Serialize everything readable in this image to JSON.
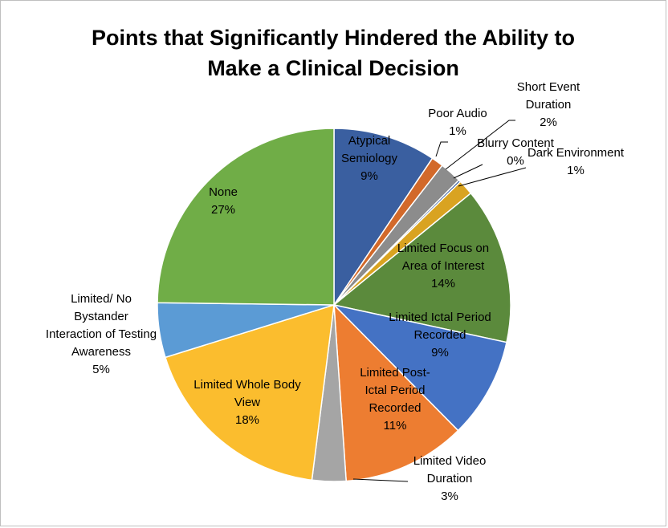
{
  "chart_data": {
    "type": "pie",
    "title": [
      "Points that Significantly Hindered the Ability to",
      "Make a Clinical Decision"
    ],
    "slices": [
      {
        "name": "Atypical Semiology",
        "value": 9,
        "label_lines": [
          "Atypical",
          "Semiology",
          "9%"
        ],
        "color": "#3a5fa0"
      },
      {
        "name": "Poor Audio",
        "value": 1,
        "label_lines": [
          "Poor Audio",
          "1%"
        ],
        "color": "#d2692a"
      },
      {
        "name": "Short Event Duration",
        "value": 2,
        "label_lines": [
          "Short Event",
          "Duration",
          "2%"
        ],
        "color": "#8c8c8c"
      },
      {
        "name": "Blurry Content",
        "value": 0,
        "label_lines": [
          "Blurry Content",
          "0%"
        ],
        "color": "#2e5597"
      },
      {
        "name": "Dark Environment",
        "value": 1,
        "label_lines": [
          "Dark Environment",
          "1%"
        ],
        "color": "#d9a321"
      },
      {
        "name": "Limited Focus on Area of Interest",
        "value": 14,
        "label_lines": [
          "Limited Focus on",
          "Area of Interest",
          "14%"
        ],
        "color": "#5b8a3c"
      },
      {
        "name": "Limited Ictal Period Recorded",
        "value": 9,
        "label_lines": [
          "Limited Ictal Period",
          "Recorded",
          "9%"
        ],
        "color": "#4472c4"
      },
      {
        "name": "Limited Post-Ictal Period Recorded",
        "value": 11,
        "label_lines": [
          "Limited Post-",
          "Ictal Period",
          "Recorded",
          "11%"
        ],
        "color": "#ed7d31"
      },
      {
        "name": "Limited Video Duration",
        "value": 3,
        "label_lines": [
          "Limited Video",
          "Duration",
          "3%"
        ],
        "color": "#a5a5a5"
      },
      {
        "name": "Limited Whole Body View",
        "value": 18,
        "label_lines": [
          "Limited Whole Body",
          "View",
          "18%"
        ],
        "color": "#fbbd2e"
      },
      {
        "name": "Limited/ No Bystander Interaction of Testing Awareness",
        "value": 5,
        "label_lines": [
          "Limited/ No",
          "Bystander",
          "Interaction of Testing",
          "Awareness",
          "5%"
        ],
        "color": "#5b9bd5"
      },
      {
        "name": "None",
        "value": 27,
        "label_lines": [
          "None",
          "27%"
        ],
        "color": "#70ad47"
      }
    ]
  }
}
